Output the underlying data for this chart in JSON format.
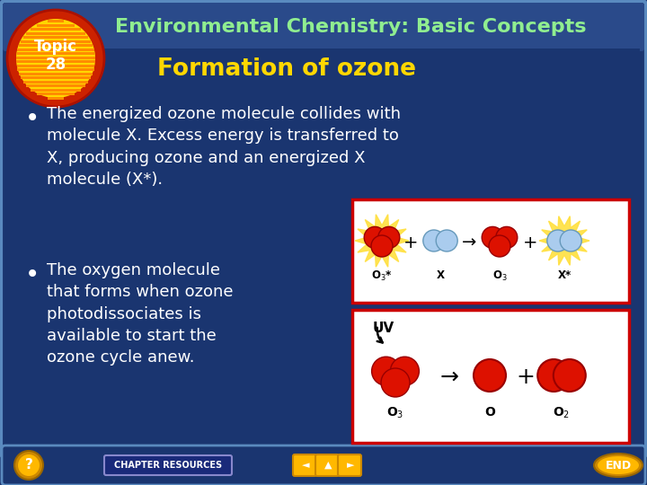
{
  "title": "Environmental Chemistry: Basic Concepts",
  "subtitle": "Formation of ozone",
  "topic_label": "Topic\n28",
  "bullet1": "The energized ozone molecule collides with\nmolecule X. Excess energy is transferred to\nX, producing ozone and an energized X\nmolecule (X*).",
  "bullet2": "The oxygen molecule\nthat forms when ozone\nphotodissociates is\navailable to start the\nozone cycle anew.",
  "bg_color": "#1a3570",
  "title_bar_color": "#2a4a8a",
  "title_text_color": "#90ee90",
  "subtitle_color": "#FFD700",
  "body_text_color": "#ffffff",
  "topic_circle_red": "#cc2200",
  "topic_circle_orange": "#FF8C00",
  "topic_circle_yellow": "#FFD700",
  "topic_text_color": "#ffffff",
  "border_color": "#5a8abf",
  "diagram_bg": "#ffffff",
  "diagram_border": "#cc0000",
  "footer_bg": "#1a3570",
  "footer_button_color": "#FFB800",
  "footer_button_dark": "#cc8800",
  "chapter_box_color": "#1a2a7a",
  "red_mol_color": "#dd1100",
  "red_mol_edge": "#990000",
  "blue_mol_color": "#aaccee",
  "blue_mol_edge": "#6699bb",
  "glow_color": "#FFE040"
}
